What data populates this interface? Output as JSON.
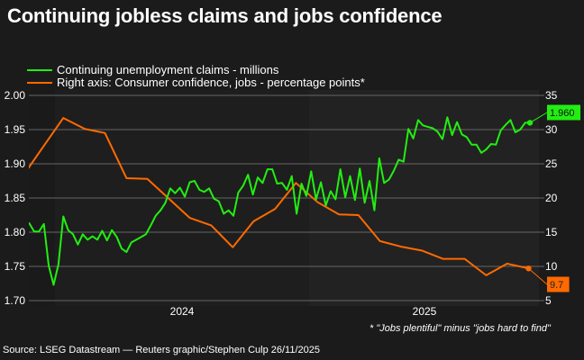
{
  "chart_data": {
    "type": "line",
    "title": "Continuing jobless claims and jobs confidence",
    "footnote": "* \"Jobs plentiful\" minus \"jobs hard to find\"",
    "source": "Source: LSEG Datastream — Reuters graphic/Stephen Culp 26/11/2025",
    "legend_placement": "top-left",
    "grid": true,
    "x_ticks": [
      "2024",
      "2025"
    ],
    "y_left": {
      "range": [
        1.7,
        2.0
      ],
      "ticks": [
        "1.70",
        "1.75",
        "1.80",
        "1.85",
        "1.90",
        "1.95",
        "2.00"
      ]
    },
    "y_right": {
      "range": [
        5,
        35
      ],
      "ticks": [
        "5",
        "10",
        "15",
        "20",
        "25",
        "30",
        "35"
      ]
    },
    "series": [
      {
        "name": "Continuing unemployment claims - millions",
        "axis": "left",
        "color": "#22ee11",
        "last_label": "1.960",
        "x": [
          "2023-11-11",
          "2023-11-18",
          "2023-11-25",
          "2023-12-02",
          "2023-12-09",
          "2023-12-16",
          "2023-12-23",
          "2023-12-30",
          "2024-01-06",
          "2024-01-13",
          "2024-01-20",
          "2024-01-27",
          "2024-02-03",
          "2024-02-10",
          "2024-02-17",
          "2024-02-24",
          "2024-03-02",
          "2024-03-09",
          "2024-03-16",
          "2024-03-23",
          "2024-03-30",
          "2024-04-06",
          "2024-04-13",
          "2024-04-20",
          "2024-04-27",
          "2024-05-04",
          "2024-05-11",
          "2024-05-18",
          "2024-05-25",
          "2024-06-01",
          "2024-06-08",
          "2024-06-15",
          "2024-06-22",
          "2024-06-29",
          "2024-07-06",
          "2024-07-13",
          "2024-07-20",
          "2024-07-27",
          "2024-08-03",
          "2024-08-10",
          "2024-08-17",
          "2024-08-24",
          "2024-08-31",
          "2024-09-07",
          "2024-09-14",
          "2024-09-21",
          "2024-09-28",
          "2024-10-05",
          "2024-10-12",
          "2024-10-19",
          "2024-10-26",
          "2024-11-02",
          "2024-11-09",
          "2024-11-16",
          "2024-11-23",
          "2024-11-30",
          "2024-12-07",
          "2024-12-14",
          "2024-12-21",
          "2024-12-28",
          "2025-01-04",
          "2025-01-11",
          "2025-01-18",
          "2025-01-25",
          "2025-02-01",
          "2025-02-08",
          "2025-02-15",
          "2025-02-22",
          "2025-03-01",
          "2025-03-08",
          "2025-03-15",
          "2025-03-22",
          "2025-03-29",
          "2025-04-05",
          "2025-04-12",
          "2025-04-19",
          "2025-04-26",
          "2025-05-03",
          "2025-05-10",
          "2025-05-17",
          "2025-05-24",
          "2025-05-31",
          "2025-06-07",
          "2025-06-14",
          "2025-06-21",
          "2025-06-28",
          "2025-07-05",
          "2025-07-12",
          "2025-07-19",
          "2025-07-26",
          "2025-08-02",
          "2025-08-09",
          "2025-08-16",
          "2025-08-23",
          "2025-08-30",
          "2025-09-06",
          "2025-09-13",
          "2025-09-20",
          "2025-09-27",
          "2025-10-04",
          "2025-10-11",
          "2025-10-18",
          "2025-10-25",
          "2025-11-01",
          "2025-11-08",
          "2025-11-15"
        ],
        "y": [
          1.812,
          1.814,
          1.813,
          1.801,
          1.801,
          1.812,
          1.751,
          1.723,
          1.753,
          1.823,
          1.803,
          1.797,
          1.782,
          1.797,
          1.789,
          1.794,
          1.789,
          1.802,
          1.788,
          1.803,
          1.793,
          1.776,
          1.771,
          1.785,
          1.789,
          1.793,
          1.797,
          1.81,
          1.824,
          1.832,
          1.843,
          1.864,
          1.857,
          1.865,
          1.852,
          1.873,
          1.875,
          1.862,
          1.859,
          1.864,
          1.849,
          1.845,
          1.827,
          1.832,
          1.824,
          1.858,
          1.868,
          1.884,
          1.855,
          1.88,
          1.872,
          1.892,
          1.892,
          1.871,
          1.872,
          1.862,
          1.882,
          1.827,
          1.871,
          1.853,
          1.889,
          1.848,
          1.873,
          1.839,
          1.86,
          1.848,
          1.892,
          1.851,
          1.882,
          1.847,
          1.893,
          1.843,
          1.875,
          1.832,
          1.908,
          1.872,
          1.877,
          1.89,
          1.906,
          1.903,
          1.951,
          1.937,
          1.964,
          1.956,
          1.954,
          1.952,
          1.947,
          1.936,
          1.968,
          1.942,
          1.961,
          1.943,
          1.939,
          1.928,
          1.928,
          1.916,
          1.921,
          1.929,
          1.928,
          1.949,
          1.957,
          1.964,
          1.946,
          1.95,
          1.96,
          1.96
        ]
      },
      {
        "name": "Right axis: Consumer confidence, jobs - percentage points*",
        "axis": "right",
        "color": "#ff6a00",
        "last_label": "9.7",
        "x": [
          "2023-11",
          "2023-12",
          "2024-01",
          "2024-02",
          "2024-03",
          "2024-04",
          "2024-05",
          "2024-07",
          "2024-08",
          "2024-09",
          "2024-10",
          "2024-11",
          "2024-12",
          "2025-01",
          "2025-02",
          "2025-03",
          "2025-04",
          "2025-05",
          "2025-06",
          "2025-07",
          "2025-08",
          "2025-09",
          "2025-10",
          "2025-11"
        ],
        "y": [
          22.8,
          27.2,
          31.7,
          30.1,
          29.5,
          22.9,
          22.8,
          17.1,
          16.0,
          12.8,
          16.6,
          18.4,
          22.2,
          19.4,
          17.6,
          17.5,
          13.7,
          12.9,
          12.3,
          11.1,
          11.1,
          8.7,
          10.4,
          9.7
        ]
      }
    ]
  }
}
